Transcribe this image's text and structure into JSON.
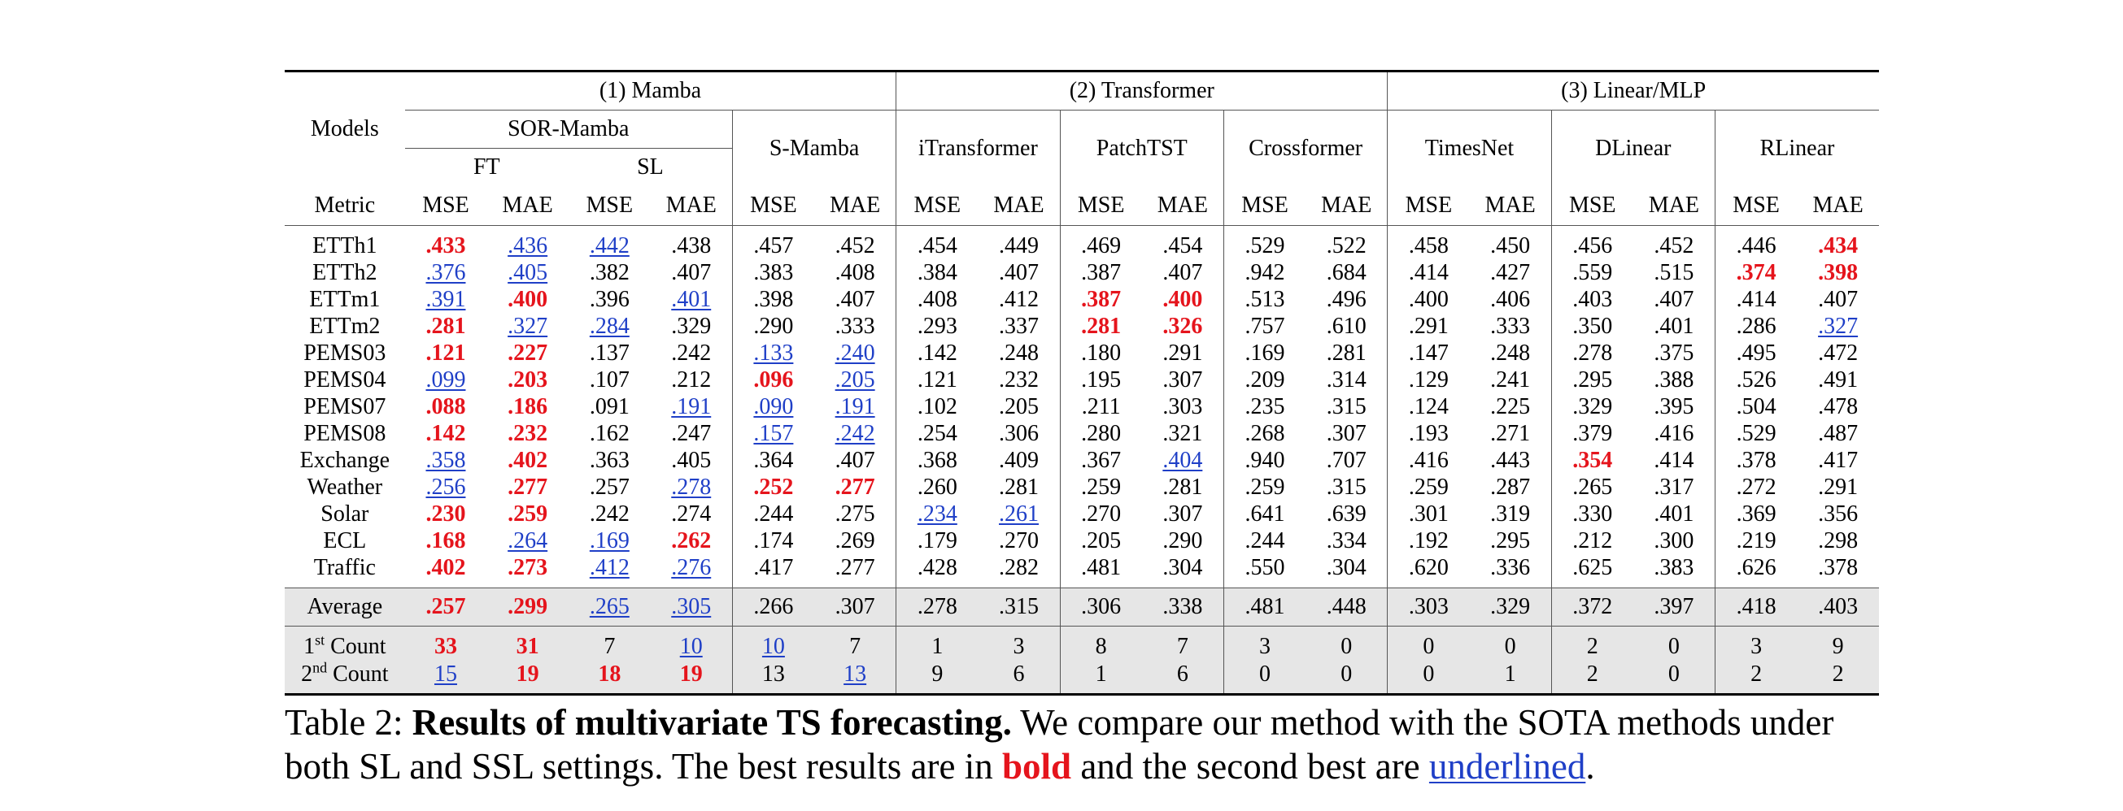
{
  "headers": {
    "models": "Models",
    "metric": "Metric",
    "group1": "(1) Mamba",
    "group2": "(2) Transformer",
    "group3": "(3) Linear/MLP",
    "sor_mamba": "SOR-Mamba",
    "ft": "FT",
    "sl": "SL",
    "s_mamba": "S-Mamba",
    "itransformer": "iTransformer",
    "patchtst": "PatchTST",
    "crossformer": "Crossformer",
    "timesnet": "TimesNet",
    "dlinear": "DLinear",
    "rlinear": "RLinear",
    "mse": "MSE",
    "mae": "MAE"
  },
  "rows": [
    {
      "name": "ETTh1",
      "v": [
        ".433",
        ".436",
        ".442",
        ".438",
        ".457",
        ".452",
        ".454",
        ".449",
        ".469",
        ".454",
        ".529",
        ".522",
        ".458",
        ".450",
        ".456",
        ".452",
        ".446",
        ".434"
      ],
      "s": [
        "b",
        "u",
        "u",
        "",
        "",
        "",
        "",
        "",
        "",
        "",
        "",
        "",
        "",
        "",
        "",
        "",
        "",
        "b"
      ]
    },
    {
      "name": "ETTh2",
      "v": [
        ".376",
        ".405",
        ".382",
        ".407",
        ".383",
        ".408",
        ".384",
        ".407",
        ".387",
        ".407",
        ".942",
        ".684",
        ".414",
        ".427",
        ".559",
        ".515",
        ".374",
        ".398"
      ],
      "s": [
        "u",
        "u",
        "",
        "",
        "",
        "",
        "",
        "",
        "",
        "",
        "",
        "",
        "",
        "",
        "",
        "",
        "b",
        "b"
      ]
    },
    {
      "name": "ETTm1",
      "v": [
        ".391",
        ".400",
        ".396",
        ".401",
        ".398",
        ".407",
        ".408",
        ".412",
        ".387",
        ".400",
        ".513",
        ".496",
        ".400",
        ".406",
        ".403",
        ".407",
        ".414",
        ".407"
      ],
      "s": [
        "u",
        "b",
        "",
        "u",
        "",
        "",
        "",
        "",
        "b",
        "b",
        "",
        "",
        "",
        "",
        "",
        "",
        "",
        ""
      ]
    },
    {
      "name": "ETTm2",
      "v": [
        ".281",
        ".327",
        ".284",
        ".329",
        ".290",
        ".333",
        ".293",
        ".337",
        ".281",
        ".326",
        ".757",
        ".610",
        ".291",
        ".333",
        ".350",
        ".401",
        ".286",
        ".327"
      ],
      "s": [
        "b",
        "u",
        "u",
        "",
        "",
        "",
        "",
        "",
        "b",
        "b",
        "",
        "",
        "",
        "",
        "",
        "",
        "",
        "u"
      ]
    },
    {
      "name": "PEMS03",
      "v": [
        ".121",
        ".227",
        ".137",
        ".242",
        ".133",
        ".240",
        ".142",
        ".248",
        ".180",
        ".291",
        ".169",
        ".281",
        ".147",
        ".248",
        ".278",
        ".375",
        ".495",
        ".472"
      ],
      "s": [
        "b",
        "b",
        "",
        "",
        "u",
        "u",
        "",
        "",
        "",
        "",
        "",
        "",
        "",
        "",
        "",
        "",
        "",
        ""
      ]
    },
    {
      "name": "PEMS04",
      "v": [
        ".099",
        ".203",
        ".107",
        ".212",
        ".096",
        ".205",
        ".121",
        ".232",
        ".195",
        ".307",
        ".209",
        ".314",
        ".129",
        ".241",
        ".295",
        ".388",
        ".526",
        ".491"
      ],
      "s": [
        "u",
        "b",
        "",
        "",
        "b",
        "u",
        "",
        "",
        "",
        "",
        "",
        "",
        "",
        "",
        "",
        "",
        "",
        ""
      ]
    },
    {
      "name": "PEMS07",
      "v": [
        ".088",
        ".186",
        ".091",
        ".191",
        ".090",
        ".191",
        ".102",
        ".205",
        ".211",
        ".303",
        ".235",
        ".315",
        ".124",
        ".225",
        ".329",
        ".395",
        ".504",
        ".478"
      ],
      "s": [
        "b",
        "b",
        "",
        "u",
        "u",
        "u",
        "",
        "",
        "",
        "",
        "",
        "",
        "",
        "",
        "",
        "",
        "",
        ""
      ]
    },
    {
      "name": "PEMS08",
      "v": [
        ".142",
        ".232",
        ".162",
        ".247",
        ".157",
        ".242",
        ".254",
        ".306",
        ".280",
        ".321",
        ".268",
        ".307",
        ".193",
        ".271",
        ".379",
        ".416",
        ".529",
        ".487"
      ],
      "s": [
        "b",
        "b",
        "",
        "",
        "u",
        "u",
        "",
        "",
        "",
        "",
        "",
        "",
        "",
        "",
        "",
        "",
        "",
        ""
      ]
    },
    {
      "name": "Exchange",
      "v": [
        ".358",
        ".402",
        ".363",
        ".405",
        ".364",
        ".407",
        ".368",
        ".409",
        ".367",
        ".404",
        ".940",
        ".707",
        ".416",
        ".443",
        ".354",
        ".414",
        ".378",
        ".417"
      ],
      "s": [
        "u",
        "b",
        "",
        "",
        "",
        "",
        "",
        "",
        "",
        "u",
        "",
        "",
        "",
        "",
        "b",
        "",
        "",
        ""
      ]
    },
    {
      "name": "Weather",
      "v": [
        ".256",
        ".277",
        ".257",
        ".278",
        ".252",
        ".277",
        ".260",
        ".281",
        ".259",
        ".281",
        ".259",
        ".315",
        ".259",
        ".287",
        ".265",
        ".317",
        ".272",
        ".291"
      ],
      "s": [
        "u",
        "b",
        "",
        "u",
        "b",
        "b",
        "",
        "",
        "",
        "",
        "",
        "",
        "",
        "",
        "",
        "",
        "",
        ""
      ]
    },
    {
      "name": "Solar",
      "v": [
        ".230",
        ".259",
        ".242",
        ".274",
        ".244",
        ".275",
        ".234",
        ".261",
        ".270",
        ".307",
        ".641",
        ".639",
        ".301",
        ".319",
        ".330",
        ".401",
        ".369",
        ".356"
      ],
      "s": [
        "b",
        "b",
        "",
        "",
        "",
        "",
        "u",
        "u",
        "",
        "",
        "",
        "",
        "",
        "",
        "",
        "",
        "",
        ""
      ]
    },
    {
      "name": "ECL",
      "v": [
        ".168",
        ".264",
        ".169",
        ".262",
        ".174",
        ".269",
        ".179",
        ".270",
        ".205",
        ".290",
        ".244",
        ".334",
        ".192",
        ".295",
        ".212",
        ".300",
        ".219",
        ".298"
      ],
      "s": [
        "b",
        "u",
        "u",
        "b",
        "",
        "",
        "",
        "",
        "",
        "",
        "",
        "",
        "",
        "",
        "",
        "",
        "",
        ""
      ]
    },
    {
      "name": "Traffic",
      "v": [
        ".402",
        ".273",
        ".412",
        ".276",
        ".417",
        ".277",
        ".428",
        ".282",
        ".481",
        ".304",
        ".550",
        ".304",
        ".620",
        ".336",
        ".625",
        ".383",
        ".626",
        ".378"
      ],
      "s": [
        "b",
        "b",
        "u",
        "u",
        "",
        "",
        "",
        "",
        "",
        "",
        "",
        "",
        "",
        "",
        "",
        "",
        "",
        ""
      ]
    }
  ],
  "average": {
    "name": "Average",
    "v": [
      ".257",
      ".299",
      ".265",
      ".305",
      ".266",
      ".307",
      ".278",
      ".315",
      ".306",
      ".338",
      ".481",
      ".448",
      ".303",
      ".329",
      ".372",
      ".397",
      ".418",
      ".403"
    ],
    "s": [
      "b",
      "b",
      "u",
      "u",
      "",
      "",
      "",
      "",
      "",
      "",
      "",
      "",
      "",
      "",
      "",
      "",
      "",
      ""
    ]
  },
  "count1": {
    "name_sup": "st",
    "name_pre": "1",
    "name_post": " Count",
    "v": [
      "33",
      "31",
      "7",
      "10",
      "10",
      "7",
      "1",
      "3",
      "8",
      "7",
      "3",
      "0",
      "0",
      "0",
      "2",
      "0",
      "3",
      "9"
    ],
    "s": [
      "b",
      "b",
      "",
      "u",
      "u",
      "",
      "",
      "",
      "",
      "",
      "",
      "",
      "",
      "",
      "",
      "",
      "",
      ""
    ]
  },
  "count2": {
    "name_sup": "nd",
    "name_pre": "2",
    "name_post": " Count",
    "v": [
      "15",
      "19",
      "18",
      "19",
      "13",
      "13",
      "9",
      "6",
      "1",
      "6",
      "0",
      "0",
      "0",
      "1",
      "2",
      "0",
      "2",
      "2"
    ],
    "s": [
      "u",
      "b",
      "b",
      "b",
      "",
      "u",
      "",
      "",
      "",
      "",
      "",
      "",
      "",
      "",
      "",
      "",
      "",
      ""
    ]
  },
  "caption": {
    "prefix": "Table 2: ",
    "bold_title": "Results of multivariate TS forecasting.",
    "text1": " We compare our method with the SOTA methods under both SL and SSL settings. The best results are in ",
    "bold_word": "bold",
    "text2": " and the second best are ",
    "underline_word": "underlined",
    "text3": "."
  }
}
